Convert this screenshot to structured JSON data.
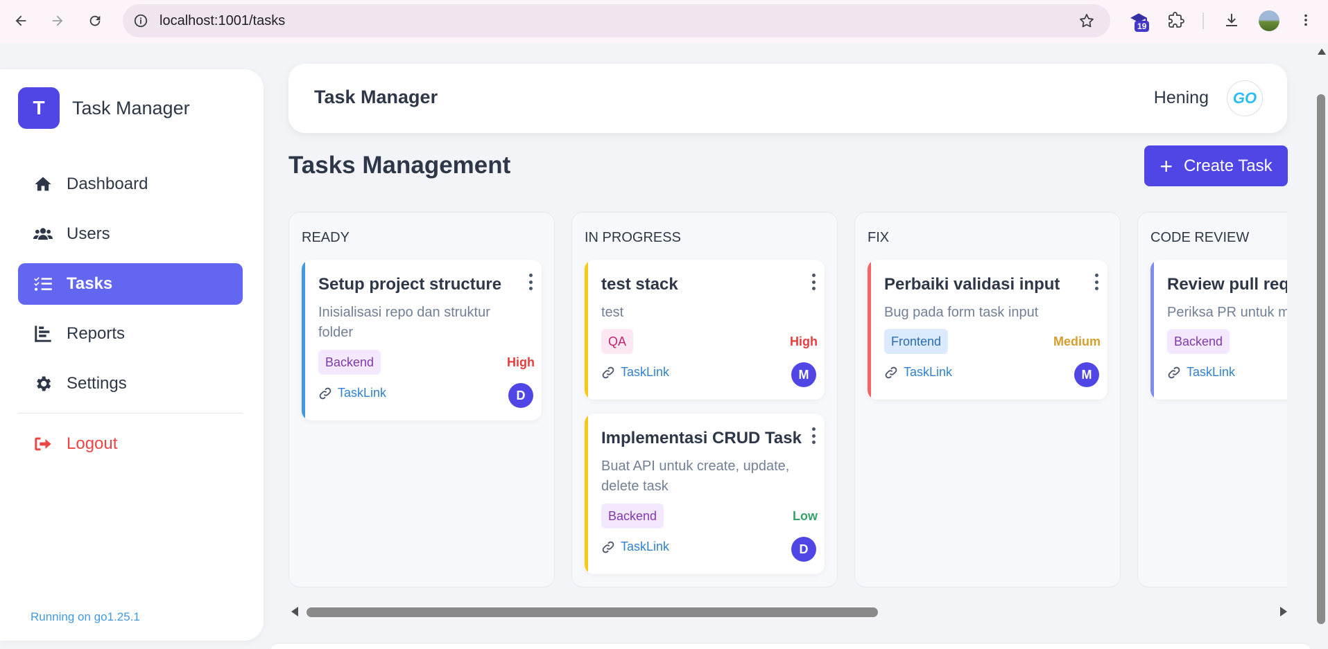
{
  "browser": {
    "url": "localhost:1001/tasks",
    "extension_badge": "19"
  },
  "sidebar": {
    "brand_letter": "T",
    "brand_name": "Task Manager",
    "items": [
      {
        "label": "Dashboard",
        "icon": "home-icon"
      },
      {
        "label": "Users",
        "icon": "users-icon"
      },
      {
        "label": "Tasks",
        "icon": "tasks-icon",
        "active": true
      },
      {
        "label": "Reports",
        "icon": "chart-icon"
      },
      {
        "label": "Settings",
        "icon": "gear-icon"
      }
    ],
    "logout_label": "Logout",
    "footer": "Running on go1.25.1"
  },
  "topbar": {
    "title": "Task Manager",
    "user_name": "Hening",
    "avatar_text": "GO"
  },
  "page": {
    "title": "Tasks Management",
    "create_label": "Create Task"
  },
  "colors": {
    "accent": "#4f46e5",
    "active_menu": "#6366f1",
    "ready_bar": "#4299e1",
    "progress_bar": "#f6c915",
    "fix_bar": "#f56565",
    "review_bar": "#7f8cf0"
  },
  "columns": [
    {
      "title": "READY",
      "cards": [
        {
          "title": "Setup project structure",
          "desc": "Inisialisasi repo dan struktur folder",
          "tag": "Backend",
          "priority": "High",
          "link": "TaskLink",
          "avatar": "D"
        }
      ]
    },
    {
      "title": "IN PROGRESS",
      "cards": [
        {
          "title": "test stack",
          "desc": "test",
          "tag": "QA",
          "priority": "High",
          "link": "TaskLink",
          "avatar": "M"
        },
        {
          "title": "Implementasi CRUD Task",
          "desc": "Buat API untuk create, update, delete task",
          "tag": "Backend",
          "priority": "Low",
          "link": "TaskLink",
          "avatar": "D"
        }
      ]
    },
    {
      "title": "FIX",
      "cards": [
        {
          "title": "Perbaiki validasi input",
          "desc": "Bug pada form task input",
          "tag": "Frontend",
          "priority": "Medium",
          "link": "TaskLink",
          "avatar": "M"
        }
      ]
    },
    {
      "title": "CODE REVIEW",
      "cards": [
        {
          "title": "Review pull request",
          "desc": "Periksa PR untuk merge",
          "tag": "Backend",
          "priority": "",
          "link": "TaskLink",
          "avatar": ""
        }
      ]
    }
  ]
}
